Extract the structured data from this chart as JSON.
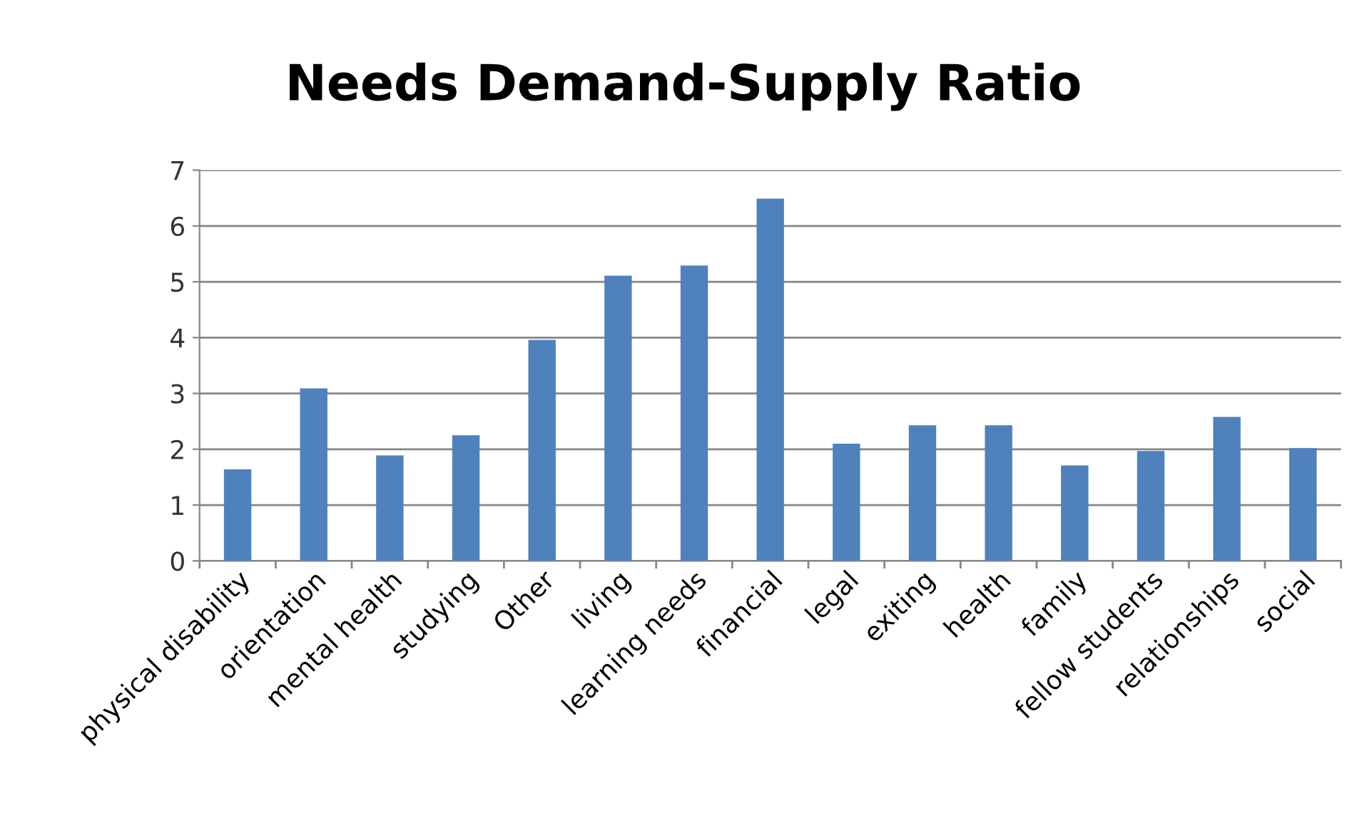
{
  "chart_data": {
    "type": "bar",
    "title": "Needs Demand-Supply Ratio",
    "categories": [
      "physical disability",
      "orientation",
      "mental health",
      "studying",
      "Other",
      "living",
      "learning needs",
      "financial",
      "legal",
      "exiting",
      "health",
      "family",
      "fellow students",
      "relationships",
      "social"
    ],
    "values": [
      1.64,
      3.09,
      1.89,
      2.25,
      3.96,
      5.11,
      5.29,
      6.49,
      2.1,
      2.43,
      2.43,
      1.71,
      1.97,
      2.58,
      2.02
    ],
    "color": "#4f81bd",
    "ylim": [
      0,
      7
    ],
    "yticks": [
      0,
      1,
      2,
      3,
      4,
      5,
      6,
      7
    ],
    "grid": "y",
    "legend": false
  }
}
